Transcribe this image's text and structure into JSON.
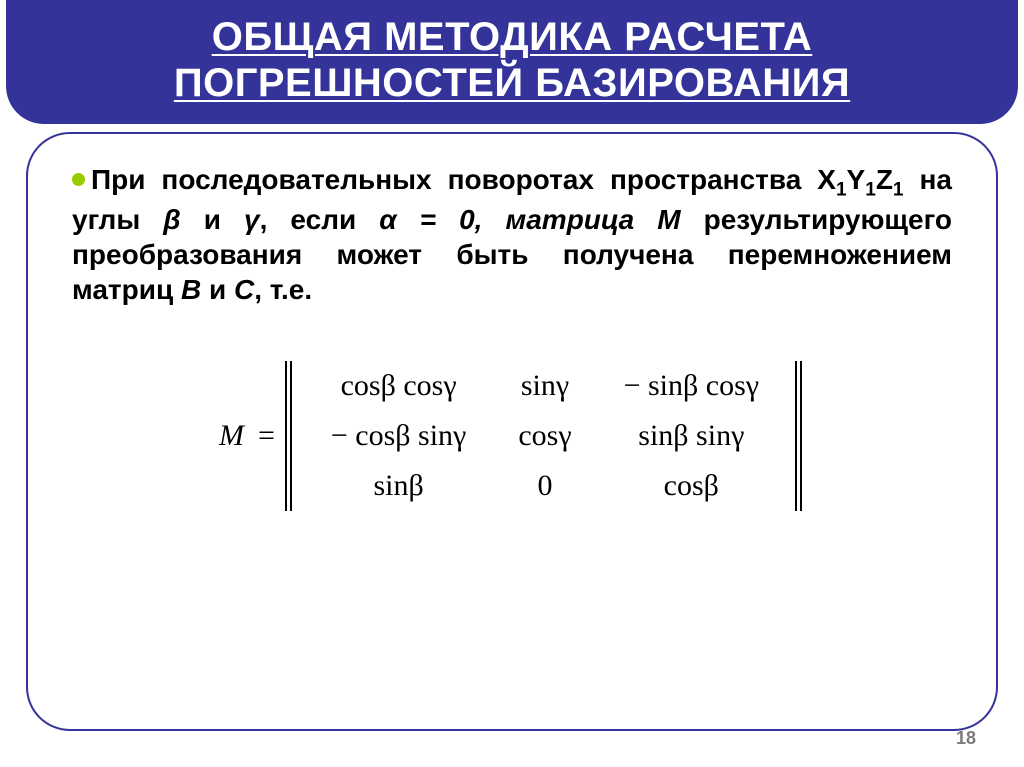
{
  "title": "ОБЩАЯ МЕТОДИКА РАСЧЕТА ПОГРЕШНОСТЕЙ БАЗИРОВАНИЯ",
  "paragraph": {
    "pre": "При последовательных поворотах пространства X",
    "sub1": "1",
    "mid1": "Y",
    "sub2": "1",
    "mid2": "Z",
    "sub3": "1",
    "mid3": " на углы ",
    "beta": "β",
    "mid4": " и ",
    "gamma": "γ",
    "mid5": ", если ",
    "alpha": "α",
    "mid6": " = 0, матрица ",
    "M": "М",
    "mid7": " результирующего преобразования может быть получена перемножением матриц ",
    "B": "B",
    "mid8": " и ",
    "C": "C",
    "tail": ", т.е."
  },
  "matrix": {
    "label": "M",
    "eq": "=",
    "rows": [
      [
        "cosβ cosγ",
        "sinγ",
        "− sinβ cosγ"
      ],
      [
        "− cosβ sinγ",
        "cosγ",
        "sinβ sinγ"
      ],
      [
        "sinβ",
        "0",
        "cosβ"
      ]
    ]
  },
  "page_number": "18",
  "colors": {
    "title_bg": "#333399",
    "title_fg": "#ffffff",
    "bullet": "#99cc00",
    "border": "#333399",
    "pagenum": "#7a7a7a"
  }
}
